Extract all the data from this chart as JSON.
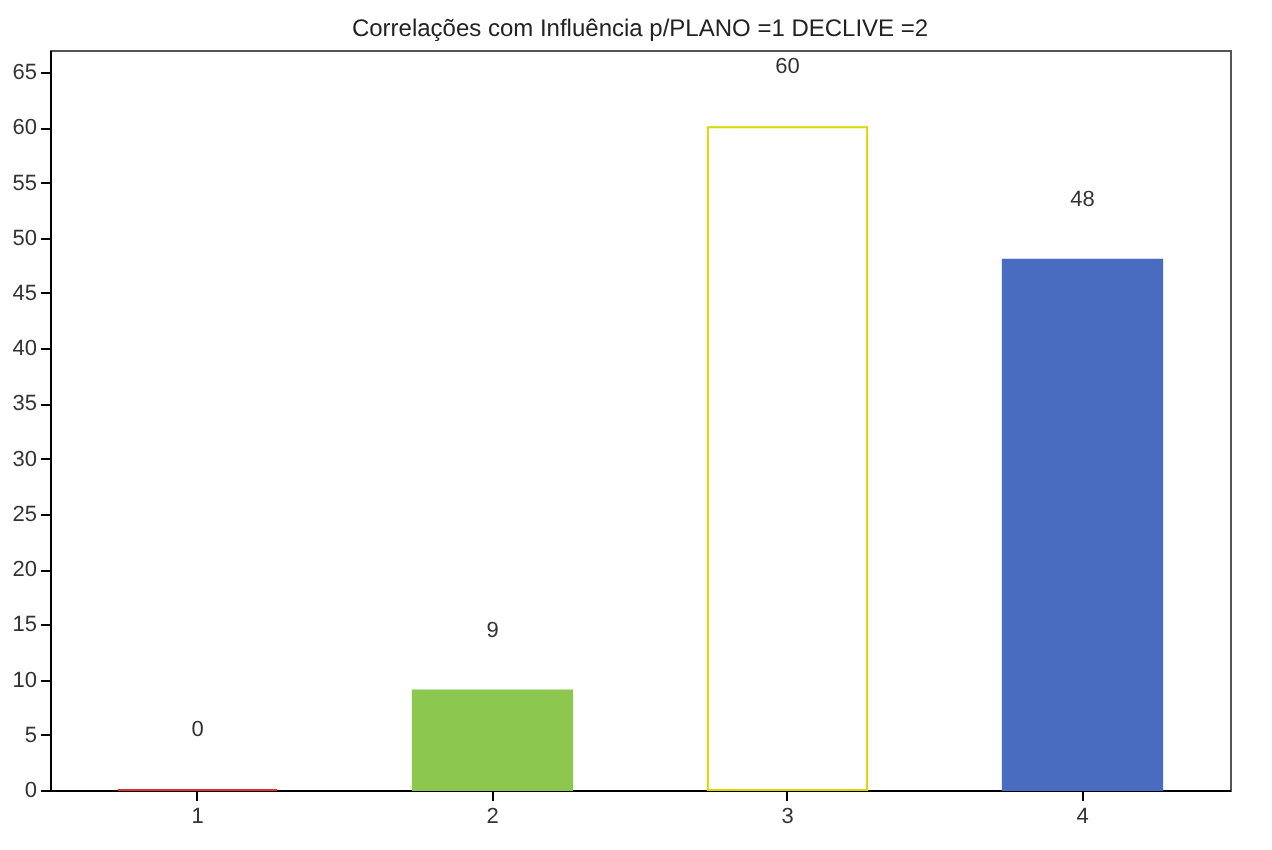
{
  "chart_data": {
    "type": "bar",
    "title": "Correlações com Influência p/PLANO =1 DECLIVE =2",
    "categories": [
      "1",
      "2",
      "3",
      "4"
    ],
    "values": [
      0,
      9,
      60,
      48
    ],
    "colors": [
      "#e03030",
      "#8cc850",
      "#ffffff",
      "#4a6cc0"
    ],
    "ylim": [
      0,
      67
    ],
    "yticks": [
      0,
      5,
      10,
      15,
      20,
      25,
      30,
      35,
      40,
      45,
      50,
      55,
      60,
      65
    ],
    "grid": false,
    "data_labels": true
  }
}
